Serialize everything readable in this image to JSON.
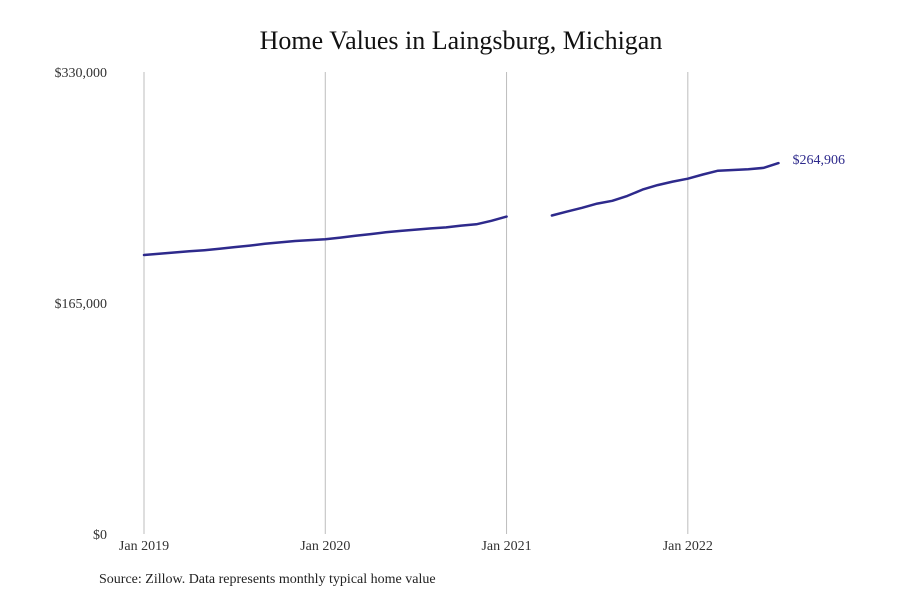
{
  "chart_data": {
    "type": "line",
    "title": "Home Values in Laingsburg, Michigan",
    "xlabel": "",
    "ylabel": "",
    "ylim": [
      0,
      330000
    ],
    "xlim": [
      "2019-01",
      "2022-12"
    ],
    "y_ticks": [
      {
        "value": 0,
        "label": "$0"
      },
      {
        "value": 165000,
        "label": "$165,000"
      },
      {
        "value": 330000,
        "label": "$330,000"
      }
    ],
    "x_ticks": [
      {
        "value": "2019-01",
        "label": "Jan 2019"
      },
      {
        "value": "2020-01",
        "label": "Jan 2020"
      },
      {
        "value": "2021-01",
        "label": "Jan 2021"
      },
      {
        "value": "2022-01",
        "label": "Jan 2022"
      }
    ],
    "grid": {
      "vertical": true,
      "horizontal": false
    },
    "line_color": "#2e2a8c",
    "end_label": "$264,906",
    "series": [
      {
        "values": [
          {
            "x": "2019-01",
            "y": 199300
          },
          {
            "x": "2019-02",
            "y": 200200
          },
          {
            "x": "2019-03",
            "y": 201100
          },
          {
            "x": "2019-04",
            "y": 201900
          },
          {
            "x": "2019-05",
            "y": 202700
          },
          {
            "x": "2019-06",
            "y": 203700
          },
          {
            "x": "2019-07",
            "y": 204900
          },
          {
            "x": "2019-08",
            "y": 206000
          },
          {
            "x": "2019-09",
            "y": 207300
          },
          {
            "x": "2019-10",
            "y": 208300
          },
          {
            "x": "2019-11",
            "y": 209300
          },
          {
            "x": "2019-12",
            "y": 209900
          },
          {
            "x": "2020-01",
            "y": 210500
          },
          {
            "x": "2020-02",
            "y": 211700
          },
          {
            "x": "2020-03",
            "y": 213000
          },
          {
            "x": "2020-04",
            "y": 214200
          },
          {
            "x": "2020-05",
            "y": 215500
          },
          {
            "x": "2020-06",
            "y": 216500
          },
          {
            "x": "2020-07",
            "y": 217400
          },
          {
            "x": "2020-08",
            "y": 218300
          },
          {
            "x": "2020-09",
            "y": 219000
          },
          {
            "x": "2020-10",
            "y": 220300
          },
          {
            "x": "2020-11",
            "y": 221200
          },
          {
            "x": "2020-12",
            "y": 223700
          },
          {
            "x": "2021-01",
            "y": 226700
          },
          {
            "x": "2021-02",
            "y": null
          },
          {
            "x": "2021-03",
            "y": null
          },
          {
            "x": "2021-04",
            "y": 227500
          },
          {
            "x": "2021-05",
            "y": 230300
          },
          {
            "x": "2021-06",
            "y": 233000
          },
          {
            "x": "2021-07",
            "y": 236000
          },
          {
            "x": "2021-08",
            "y": 238000
          },
          {
            "x": "2021-09",
            "y": 241500
          },
          {
            "x": "2021-10",
            "y": 246000
          },
          {
            "x": "2021-11",
            "y": 249200
          },
          {
            "x": "2021-12",
            "y": 251700
          },
          {
            "x": "2022-01",
            "y": 253800
          },
          {
            "x": "2022-02",
            "y": 256800
          },
          {
            "x": "2022-03",
            "y": 259500
          },
          {
            "x": "2022-04",
            "y": 260000
          },
          {
            "x": "2022-05",
            "y": 260500
          },
          {
            "x": "2022-06",
            "y": 261500
          },
          {
            "x": "2022-07",
            "y": 264906
          }
        ]
      }
    ]
  },
  "source_note": "Source: Zillow. Data represents monthly typical home value"
}
